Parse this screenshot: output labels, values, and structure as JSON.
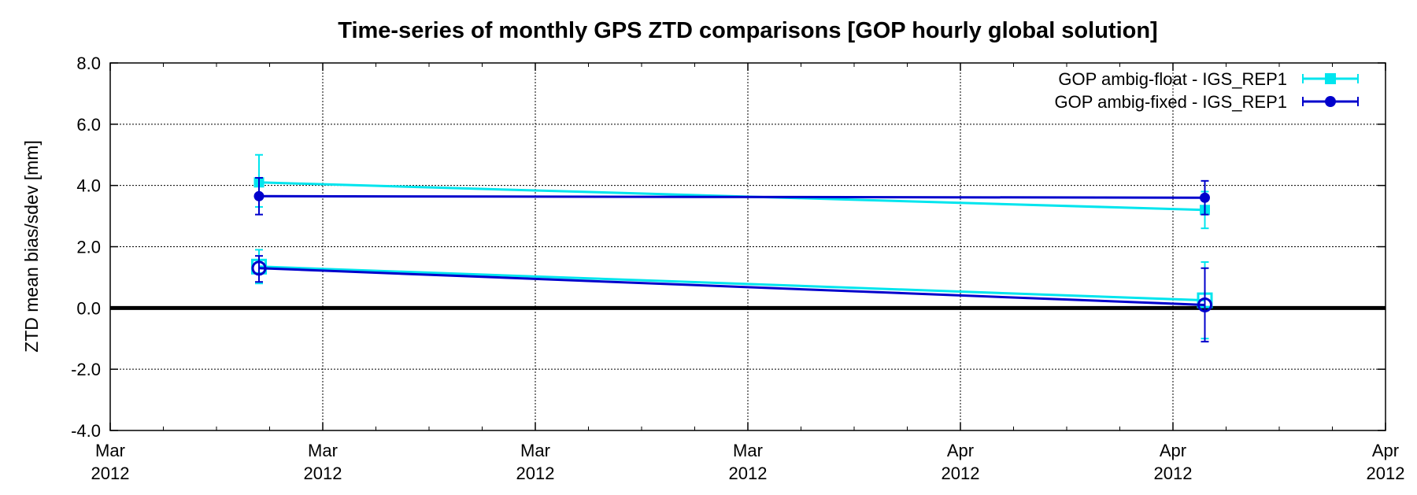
{
  "chart_data": {
    "type": "line",
    "title": "Time-series of monthly GPS ZTD comparisons [GOP hourly global solution]",
    "xlabel": "",
    "ylabel": "ZTD mean bias/sdev [mm]",
    "ylim": [
      -4.0,
      8.0
    ],
    "y_ticks": [
      "-4.0",
      "-2.0",
      "0.0",
      "2.0",
      "4.0",
      "6.0",
      "8.0"
    ],
    "x_ticks": [
      {
        "month": "Mar",
        "year": "2012"
      },
      {
        "month": "Mar",
        "year": "2012"
      },
      {
        "month": "Mar",
        "year": "2012"
      },
      {
        "month": "Mar",
        "year": "2012"
      },
      {
        "month": "Apr",
        "year": "2012"
      },
      {
        "month": "Apr",
        "year": "2012"
      },
      {
        "month": "Apr",
        "year": "2012"
      }
    ],
    "x_tick_positions": [
      0,
      1,
      2,
      3,
      4,
      5,
      6
    ],
    "x_points": [
      0.7,
      5.15
    ],
    "grid": true,
    "legend_position": "top-right",
    "series": [
      {
        "name": "GOP ambig-float - IGS_REP1",
        "color": "#00e5ee",
        "marker": "square",
        "sdev": {
          "values": [
            4.1,
            3.2
          ],
          "err_low": [
            3.3,
            2.6
          ],
          "err_high": [
            5.0,
            3.8
          ]
        },
        "bias": {
          "values": [
            1.35,
            0.25
          ],
          "err_low": [
            0.8,
            -1.0
          ],
          "err_high": [
            1.9,
            1.5
          ]
        }
      },
      {
        "name": "GOP ambig-fixed - IGS_REP1",
        "color": "#0000cc",
        "marker": "circle",
        "sdev": {
          "values": [
            3.65,
            3.6
          ],
          "err_low": [
            3.05,
            3.05
          ],
          "err_high": [
            4.25,
            4.15
          ]
        },
        "bias": {
          "values": [
            1.3,
            0.1
          ],
          "err_low": [
            0.85,
            -1.1
          ],
          "err_high": [
            1.7,
            1.3
          ]
        }
      }
    ]
  }
}
